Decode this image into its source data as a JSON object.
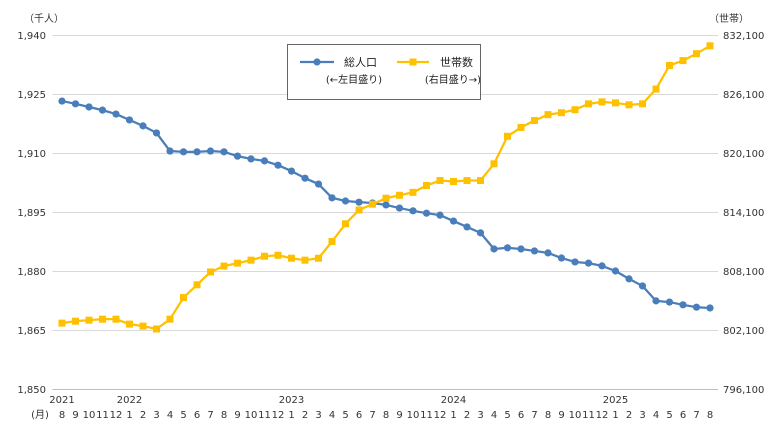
{
  "chart_data": {
    "type": "line",
    "left_axis": {
      "unit_label": "（千人）",
      "min": 1850,
      "max": 1940,
      "ticks": [
        "1,850",
        "1,865",
        "1,880",
        "1,895",
        "1,910",
        "1,925",
        "1,940"
      ]
    },
    "right_axis": {
      "unit_label": "（世帯）",
      "min": 796100,
      "max": 832100,
      "ticks": [
        "796,100",
        "802,100",
        "808,100",
        "814,100",
        "820,100",
        "826,100",
        "832,100"
      ]
    },
    "x_axis": {
      "unit_label": "(月)",
      "groups": [
        {
          "year": "2021",
          "months": [
            "8",
            "9",
            "10",
            "11",
            "12"
          ]
        },
        {
          "year": "2022",
          "months": [
            "1",
            "2",
            "3",
            "4",
            "5",
            "6",
            "7",
            "8",
            "9",
            "10",
            "11",
            "12"
          ]
        },
        {
          "year": "2023",
          "months": [
            "1",
            "2",
            "3",
            "4",
            "5",
            "6",
            "7",
            "8",
            "9",
            "10",
            "11",
            "12"
          ]
        },
        {
          "year": "2024",
          "months": [
            "1",
            "2",
            "3",
            "4",
            "5",
            "6",
            "7",
            "8",
            "9",
            "10",
            "11",
            "12"
          ]
        },
        {
          "year": "2025",
          "months": [
            "1",
            "2",
            "3",
            "4",
            "5",
            "6",
            "7",
            "8"
          ]
        }
      ]
    },
    "grid": "horizontal",
    "legend": {
      "position": "top-center",
      "boxed": true
    },
    "series": [
      {
        "name": "総人口",
        "note": "(←左目盛り)",
        "axis": "left",
        "color": "#4a7ebb",
        "marker": "circle",
        "values": [
          1923.2,
          1922.5,
          1921.7,
          1920.9,
          1919.9,
          1918.4,
          1916.9,
          1915.1,
          1910.5,
          1910.3,
          1910.3,
          1910.5,
          1910.3,
          1909.2,
          1908.5,
          1908.0,
          1906.9,
          1905.4,
          1903.6,
          1902.1,
          1898.6,
          1897.8,
          1897.5,
          1897.3,
          1896.8,
          1896.0,
          1895.3,
          1894.7,
          1894.2,
          1892.7,
          1891.2,
          1889.7,
          1885.6,
          1885.9,
          1885.6,
          1885.1,
          1884.6,
          1883.3,
          1882.3,
          1882.0,
          1881.3,
          1880.0,
          1878.0,
          1876.2,
          1872.4,
          1872.1,
          1871.4,
          1870.8,
          1870.6
        ]
      },
      {
        "name": "世帯数",
        "note": "(右目盛り→)",
        "axis": "right",
        "color": "#ffc000",
        "marker": "square",
        "values": [
          802800,
          803000,
          803100,
          803200,
          803200,
          802700,
          802500,
          802200,
          803200,
          805400,
          806700,
          808000,
          808600,
          808900,
          809200,
          809600,
          809700,
          809400,
          809200,
          809400,
          811100,
          812900,
          814300,
          814900,
          815500,
          815800,
          816100,
          816800,
          817300,
          817200,
          817300,
          817300,
          819000,
          821800,
          822700,
          823400,
          824000,
          824200,
          824500,
          825100,
          825300,
          825200,
          825000,
          825100,
          826600,
          829000,
          829500,
          830200,
          831000
        ]
      }
    ]
  }
}
